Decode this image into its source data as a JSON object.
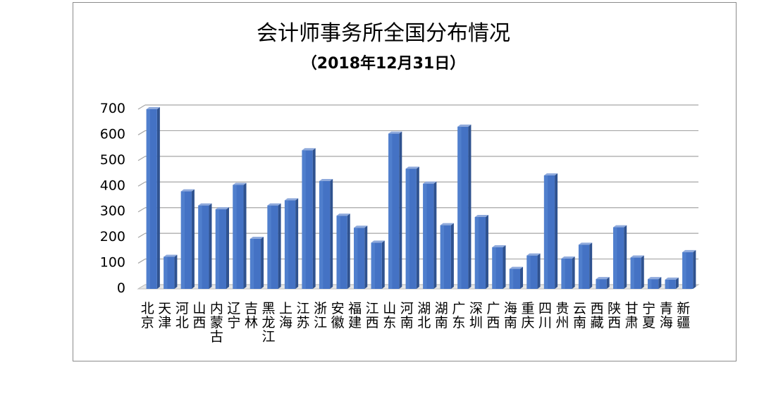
{
  "chart_data": {
    "type": "bar",
    "title": "会计师事务所全国分布情况",
    "subtitle": "（2018年12月31日）",
    "xlabel": "",
    "ylabel": "",
    "ylim": [
      0,
      700
    ],
    "yticks": [
      "0",
      "100",
      "200",
      "300",
      "400",
      "500",
      "600",
      "700"
    ],
    "grid": true,
    "legend": "none",
    "bar_color": "#4472c4",
    "categories": [
      "北京",
      "天津",
      "河北",
      "山西",
      "内蒙古",
      "辽宁",
      "吉林",
      "黑龙江",
      "上海",
      "江苏",
      "浙江",
      "安徽",
      "福建",
      "江西",
      "山东",
      "河南",
      "湖北",
      "湖南",
      "广东",
      "深圳",
      "广西",
      "海南",
      "重庆",
      "四川",
      "贵州",
      "云南",
      "西藏",
      "陕西",
      "甘肃",
      "宁夏",
      "青海",
      "新疆"
    ],
    "values": [
      700,
      125,
      380,
      325,
      310,
      405,
      195,
      325,
      345,
      540,
      420,
      285,
      238,
      180,
      605,
      468,
      410,
      248,
      632,
      280,
      162,
      78,
      130,
      442,
      118,
      172,
      38,
      240,
      122,
      38,
      36,
      143
    ]
  }
}
